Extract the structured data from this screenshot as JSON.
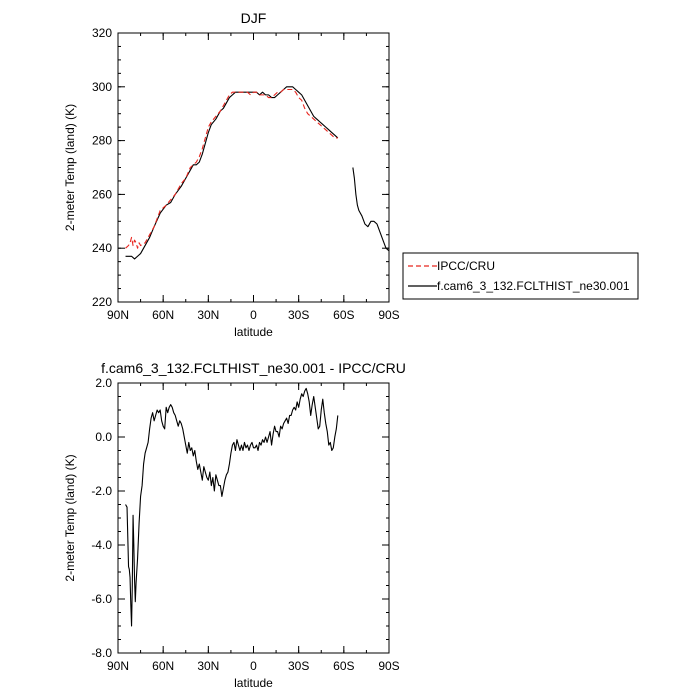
{
  "chart_data": [
    {
      "type": "line",
      "title": "DJF",
      "xlabel": "latitude",
      "ylabel": "2-meter Temp (land) (K)",
      "xlim": [
        -90,
        90
      ],
      "ylim": [
        220,
        320
      ],
      "xtick_values": [
        -90,
        -60,
        -30,
        0,
        30,
        60,
        90
      ],
      "xtick_labels": [
        "90N",
        "60N",
        "30N",
        "0",
        "30S",
        "60S",
        "90S"
      ],
      "ytick_values": [
        220,
        240,
        260,
        280,
        300,
        320
      ],
      "ytick_labels": [
        "220",
        "240",
        "260",
        "280",
        "300",
        "320"
      ],
      "legend_position": "outside-right",
      "series": [
        {
          "name": "IPCC/CRU",
          "style": "dashed",
          "color": "#e8261f",
          "x": [
            -85,
            -83,
            -82,
            -81,
            -80,
            -79,
            -78,
            -77,
            -76,
            -75,
            -72,
            -70,
            -66,
            -62,
            -58,
            -55,
            -52,
            -48,
            -45,
            -42,
            -40,
            -38,
            -36,
            -34,
            -32,
            -30,
            -28,
            -25,
            -22,
            -20,
            -18,
            -16,
            -14,
            -12,
            -10,
            -8,
            -6,
            -4,
            -2,
            0,
            2,
            4,
            6,
            8,
            10,
            12,
            14,
            16,
            18,
            20,
            22,
            24,
            26,
            28,
            30,
            32,
            34,
            36,
            38,
            40,
            42,
            44,
            46,
            48,
            50,
            52,
            54,
            56
          ],
          "y": [
            240,
            241,
            242,
            244,
            241,
            243,
            242,
            240,
            242,
            241,
            242,
            244,
            248,
            254,
            256,
            258,
            260,
            264,
            266,
            270,
            271,
            272,
            274,
            277,
            281,
            285,
            287,
            289,
            291,
            293,
            295,
            297,
            298,
            298,
            298,
            298,
            298,
            298,
            297,
            298,
            298,
            297,
            297,
            297,
            296,
            296,
            297,
            298,
            298,
            299,
            299,
            299,
            299,
            298,
            296,
            295,
            292,
            290,
            289,
            288,
            287,
            286,
            285,
            284,
            283,
            282,
            281,
            281
          ]
        },
        {
          "name": "f.cam6_3_132.FCLTHIST_ne30.001",
          "style": "solid",
          "color": "#000000",
          "segments": [
            {
              "x": [
                -85,
                -83,
                -81,
                -79,
                -77,
                -75,
                -73,
                -71,
                -69,
                -66,
                -62,
                -58,
                -55,
                -52,
                -48,
                -45,
                -42,
                -40,
                -38,
                -36,
                -34,
                -32,
                -30,
                -28,
                -25,
                -22,
                -20,
                -18,
                -16,
                -14,
                -12,
                -10,
                -8,
                -6,
                -4,
                -2,
                0,
                2,
                4,
                6,
                8,
                10,
                12,
                14,
                16,
                18,
                20,
                22,
                24,
                26,
                28,
                30,
                32,
                34,
                36,
                38,
                40,
                42,
                44,
                46,
                48,
                50,
                52,
                54,
                56
              ],
              "y": [
                237,
                237,
                237,
                236,
                237,
                238,
                240,
                242,
                244,
                248,
                253,
                256,
                257,
                260,
                263,
                266,
                269,
                271,
                271,
                272,
                275,
                279,
                283,
                286,
                288,
                291,
                292,
                294,
                296,
                297,
                298,
                298,
                298,
                298,
                298,
                298,
                298,
                298,
                297,
                298,
                297,
                297,
                296,
                296,
                297,
                298,
                299,
                300,
                300,
                300,
                299,
                298,
                297,
                295,
                293,
                291,
                289,
                288,
                287,
                286,
                285,
                284,
                283,
                282,
                281
              ]
            },
            {
              "x": [
                66,
                67,
                68,
                69,
                70,
                72,
                74,
                76,
                78,
                80,
                82,
                84,
                86,
                88,
                90
              ],
              "y": [
                270,
                266,
                260,
                256,
                254,
                252,
                249,
                248,
                250,
                250,
                249,
                246,
                243,
                240,
                239
              ]
            }
          ]
        }
      ]
    },
    {
      "type": "line",
      "title": "f.cam6_3_132.FCLTHIST_ne30.001 - IPCC/CRU",
      "xlabel": "latitude",
      "ylabel": "2-meter Temp (land) (K)",
      "xlim": [
        -90,
        90
      ],
      "ylim": [
        -8,
        2
      ],
      "xtick_values": [
        -90,
        -60,
        -30,
        0,
        30,
        60,
        90
      ],
      "xtick_labels": [
        "90N",
        "60N",
        "30N",
        "0",
        "30S",
        "60S",
        "90S"
      ],
      "ytick_values": [
        -8,
        -6,
        -4,
        -2,
        0,
        2
      ],
      "ytick_labels": [
        "-8.0",
        "-6.0",
        "-4.0",
        "-2.0",
        "0.0",
        "2.0"
      ],
      "series": [
        {
          "style": "solid",
          "color": "#000000",
          "x": [
            -85,
            -84,
            -83,
            -82.5,
            -82,
            -81.5,
            -81,
            -80.5,
            -80,
            -79.5,
            -79,
            -78.5,
            -78,
            -77,
            -76,
            -75,
            -74,
            -73,
            -72,
            -71,
            -70,
            -69,
            -68,
            -67,
            -66,
            -65,
            -64,
            -63,
            -62,
            -61,
            -60,
            -59,
            -58,
            -57,
            -56,
            -55,
            -54,
            -53,
            -52,
            -51,
            -50,
            -49,
            -48,
            -47,
            -46,
            -45,
            -44,
            -43,
            -42,
            -41,
            -40,
            -39,
            -38,
            -37,
            -36,
            -35,
            -34,
            -33,
            -32,
            -31,
            -30,
            -29,
            -28,
            -27,
            -26,
            -25,
            -24,
            -23,
            -22,
            -21,
            -20,
            -19,
            -18,
            -17,
            -16,
            -15,
            -14,
            -13,
            -12,
            -11,
            -10,
            -9,
            -8,
            -7,
            -6,
            -5,
            -4,
            -3,
            -2,
            -1,
            0,
            1,
            2,
            3,
            4,
            5,
            6,
            7,
            8,
            9,
            10,
            11,
            12,
            13,
            14,
            15,
            16,
            17,
            18,
            19,
            20,
            21,
            22,
            23,
            24,
            25,
            26,
            27,
            28,
            29,
            30,
            31,
            32,
            33,
            34,
            35,
            36,
            37,
            38,
            39,
            40,
            41,
            42,
            43,
            44,
            45,
            46,
            47,
            48,
            49,
            50,
            51,
            52,
            53,
            54,
            55,
            56
          ],
          "y": [
            -2.5,
            -2.6,
            -4.8,
            -4.9,
            -5.2,
            -6.2,
            -7.0,
            -5.5,
            -2.9,
            -4.0,
            -5.3,
            -6.1,
            -5.4,
            -4.5,
            -3.2,
            -2.2,
            -1.8,
            -1.0,
            -0.6,
            -0.4,
            -0.2,
            0.3,
            0.7,
            0.9,
            0.6,
            0.8,
            1.0,
            0.9,
            1.0,
            0.6,
            0.4,
            0.3,
            1.1,
            0.9,
            1.1,
            1.2,
            1.1,
            0.9,
            0.8,
            0.6,
            0.4,
            0.6,
            0.5,
            0.3,
            0.0,
            -0.3,
            -0.6,
            -0.2,
            -0.5,
            -0.4,
            -0.7,
            -0.5,
            -0.9,
            -1.2,
            -1.0,
            -1.3,
            -1.6,
            -1.1,
            -1.3,
            -1.5,
            -1.6,
            -1.3,
            -1.8,
            -1.5,
            -2.0,
            -1.4,
            -1.6,
            -1.8,
            -1.8,
            -2.2,
            -1.9,
            -1.6,
            -1.4,
            -1.3,
            -1.0,
            -0.6,
            -0.3,
            -0.2,
            -0.5,
            -0.1,
            -0.3,
            -0.5,
            -0.3,
            -0.5,
            -0.2,
            -0.4,
            -0.3,
            -0.5,
            -0.3,
            -0.2,
            -0.4,
            -0.4,
            -0.3,
            -0.5,
            -0.2,
            -0.3,
            -0.1,
            -0.2,
            0.0,
            -0.2,
            0.0,
            0.2,
            -0.3,
            0.1,
            0.4,
            0.2,
            0.2,
            0.0,
            0.4,
            0.3,
            0.5,
            0.6,
            0.7,
            0.5,
            0.8,
            0.8,
            1.0,
            1.1,
            1.0,
            1.3,
            1.1,
            1.4,
            1.6,
            1.5,
            1.7,
            1.8,
            1.6,
            1.3,
            0.8,
            1.2,
            1.5,
            1.1,
            0.7,
            0.3,
            0.4,
            1.0,
            1.4,
            0.9,
            0.5,
            0.2,
            -0.3,
            -0.2,
            -0.5,
            -0.4,
            0.0,
            0.3,
            0.8
          ]
        }
      ]
    }
  ],
  "legend": {
    "items": [
      {
        "label": "IPCC/CRU",
        "style": "dashed",
        "color": "#e8261f"
      },
      {
        "label": "f.cam6_3_132.FCLTHIST_ne30.001",
        "style": "solid",
        "color": "#000000"
      }
    ]
  }
}
